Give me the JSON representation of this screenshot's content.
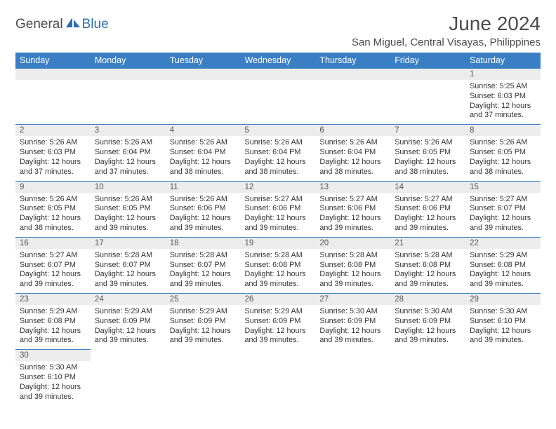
{
  "brand": {
    "text1": "General",
    "text2": "Blue",
    "icon_color": "#2b6daf"
  },
  "header": {
    "month_title": "June 2024",
    "location": "San Miguel, Central Visayas, Philippines"
  },
  "dayNames": [
    "Sunday",
    "Monday",
    "Tuesday",
    "Wednesday",
    "Thursday",
    "Friday",
    "Saturday"
  ],
  "colors": {
    "header_bg": "#3a7fc4",
    "header_text": "#ffffff",
    "daynum_bg": "#ececec",
    "border": "#3a7fc4",
    "body_text": "#333333"
  },
  "weeks": [
    [
      null,
      null,
      null,
      null,
      null,
      null,
      {
        "n": "1",
        "sr": "5:25 AM",
        "ss": "6:03 PM",
        "dl": "12 hours and 37 minutes."
      }
    ],
    [
      {
        "n": "2",
        "sr": "5:26 AM",
        "ss": "6:03 PM",
        "dl": "12 hours and 37 minutes."
      },
      {
        "n": "3",
        "sr": "5:26 AM",
        "ss": "6:04 PM",
        "dl": "12 hours and 37 minutes."
      },
      {
        "n": "4",
        "sr": "5:26 AM",
        "ss": "6:04 PM",
        "dl": "12 hours and 38 minutes."
      },
      {
        "n": "5",
        "sr": "5:26 AM",
        "ss": "6:04 PM",
        "dl": "12 hours and 38 minutes."
      },
      {
        "n": "6",
        "sr": "5:26 AM",
        "ss": "6:04 PM",
        "dl": "12 hours and 38 minutes."
      },
      {
        "n": "7",
        "sr": "5:26 AM",
        "ss": "6:05 PM",
        "dl": "12 hours and 38 minutes."
      },
      {
        "n": "8",
        "sr": "5:26 AM",
        "ss": "6:05 PM",
        "dl": "12 hours and 38 minutes."
      }
    ],
    [
      {
        "n": "9",
        "sr": "5:26 AM",
        "ss": "6:05 PM",
        "dl": "12 hours and 38 minutes."
      },
      {
        "n": "10",
        "sr": "5:26 AM",
        "ss": "6:05 PM",
        "dl": "12 hours and 39 minutes."
      },
      {
        "n": "11",
        "sr": "5:26 AM",
        "ss": "6:06 PM",
        "dl": "12 hours and 39 minutes."
      },
      {
        "n": "12",
        "sr": "5:27 AM",
        "ss": "6:06 PM",
        "dl": "12 hours and 39 minutes."
      },
      {
        "n": "13",
        "sr": "5:27 AM",
        "ss": "6:06 PM",
        "dl": "12 hours and 39 minutes."
      },
      {
        "n": "14",
        "sr": "5:27 AM",
        "ss": "6:06 PM",
        "dl": "12 hours and 39 minutes."
      },
      {
        "n": "15",
        "sr": "5:27 AM",
        "ss": "6:07 PM",
        "dl": "12 hours and 39 minutes."
      }
    ],
    [
      {
        "n": "16",
        "sr": "5:27 AM",
        "ss": "6:07 PM",
        "dl": "12 hours and 39 minutes."
      },
      {
        "n": "17",
        "sr": "5:28 AM",
        "ss": "6:07 PM",
        "dl": "12 hours and 39 minutes."
      },
      {
        "n": "18",
        "sr": "5:28 AM",
        "ss": "6:07 PM",
        "dl": "12 hours and 39 minutes."
      },
      {
        "n": "19",
        "sr": "5:28 AM",
        "ss": "6:08 PM",
        "dl": "12 hours and 39 minutes."
      },
      {
        "n": "20",
        "sr": "5:28 AM",
        "ss": "6:08 PM",
        "dl": "12 hours and 39 minutes."
      },
      {
        "n": "21",
        "sr": "5:28 AM",
        "ss": "6:08 PM",
        "dl": "12 hours and 39 minutes."
      },
      {
        "n": "22",
        "sr": "5:29 AM",
        "ss": "6:08 PM",
        "dl": "12 hours and 39 minutes."
      }
    ],
    [
      {
        "n": "23",
        "sr": "5:29 AM",
        "ss": "6:08 PM",
        "dl": "12 hours and 39 minutes."
      },
      {
        "n": "24",
        "sr": "5:29 AM",
        "ss": "6:09 PM",
        "dl": "12 hours and 39 minutes."
      },
      {
        "n": "25",
        "sr": "5:29 AM",
        "ss": "6:09 PM",
        "dl": "12 hours and 39 minutes."
      },
      {
        "n": "26",
        "sr": "5:29 AM",
        "ss": "6:09 PM",
        "dl": "12 hours and 39 minutes."
      },
      {
        "n": "27",
        "sr": "5:30 AM",
        "ss": "6:09 PM",
        "dl": "12 hours and 39 minutes."
      },
      {
        "n": "28",
        "sr": "5:30 AM",
        "ss": "6:09 PM",
        "dl": "12 hours and 39 minutes."
      },
      {
        "n": "29",
        "sr": "5:30 AM",
        "ss": "6:10 PM",
        "dl": "12 hours and 39 minutes."
      }
    ],
    [
      {
        "n": "30",
        "sr": "5:30 AM",
        "ss": "6:10 PM",
        "dl": "12 hours and 39 minutes."
      },
      null,
      null,
      null,
      null,
      null,
      null
    ]
  ],
  "labels": {
    "sunrise": "Sunrise: ",
    "sunset": "Sunset: ",
    "daylight": "Daylight: "
  }
}
